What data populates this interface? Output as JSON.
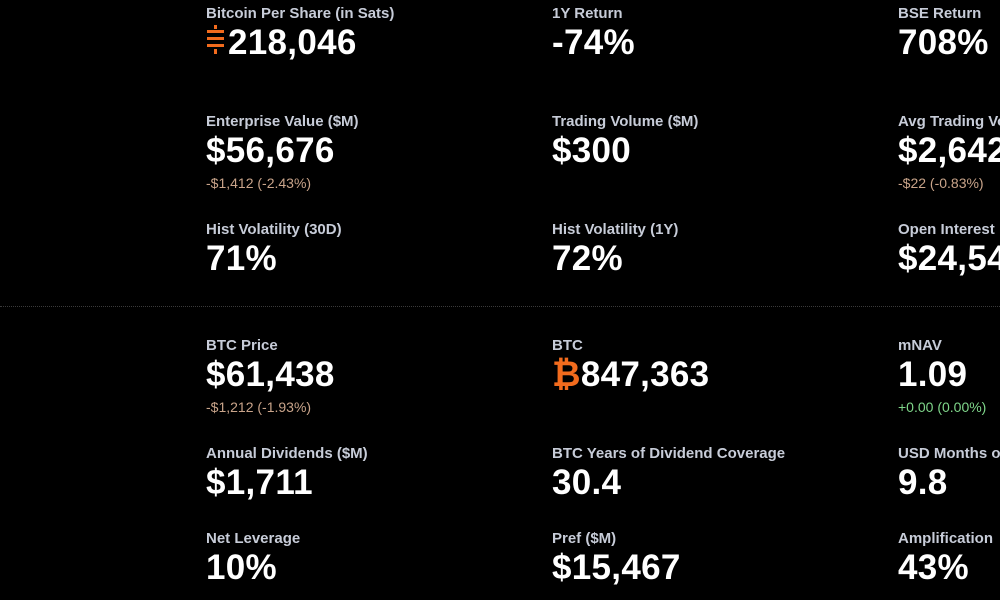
{
  "colors": {
    "background": "#000000",
    "label": "#c7ccd8",
    "value": "#ffffff",
    "accent": "#f26b1d",
    "negative_change": "#c9a48a",
    "positive_change": "#7fd68a"
  },
  "top_section": {
    "bitcoin_per_share": {
      "label": "Bitcoin Per Share (in Sats)",
      "icon": "sats-icon",
      "value": "218,046"
    },
    "one_year_return": {
      "label": "1Y Return",
      "value": "-74%"
    },
    "bse_return": {
      "label": "BSE Return",
      "value": "708%"
    },
    "enterprise_value": {
      "label": "Enterprise Value ($M)",
      "value": "$56,676",
      "change": "-$1,412 (-2.43%)"
    },
    "trading_volume": {
      "label": "Trading Volume ($M)",
      "value": "$300"
    },
    "avg_trading_volume": {
      "label": "Avg Trading Vo",
      "value": "$2,642",
      "change": "-$22 (-0.83%)"
    },
    "hist_volatility_30d": {
      "label": "Hist Volatility (30D)",
      "value": "71%"
    },
    "hist_volatility_1y": {
      "label": "Hist Volatility (1Y)",
      "value": "72%"
    },
    "open_interest": {
      "label": "Open Interest",
      "value": "$24,54"
    }
  },
  "bottom_section": {
    "btc_price": {
      "label": "BTC Price",
      "value": "$61,438",
      "change": "-$1,212 (-1.93%)"
    },
    "btc_holdings": {
      "label": "BTC",
      "icon": "bitcoin-icon",
      "unit_symbol": "₿",
      "value": "847,363"
    },
    "mnav": {
      "label": "mNAV",
      "value": "1.09",
      "change": "+0.00 (0.00%)"
    },
    "annual_dividends": {
      "label": "Annual Dividends ($M)",
      "value": "$1,711"
    },
    "btc_years_dividend_coverage": {
      "label": "BTC Years of Dividend Coverage",
      "value": "30.4"
    },
    "usd_months": {
      "label": "USD Months o",
      "value": "9.8"
    },
    "net_leverage": {
      "label": "Net Leverage",
      "value": "10%"
    },
    "pref": {
      "label": "Pref ($M)",
      "value": "$15,467"
    },
    "amplification": {
      "label": "Amplification",
      "value": "43%"
    }
  }
}
